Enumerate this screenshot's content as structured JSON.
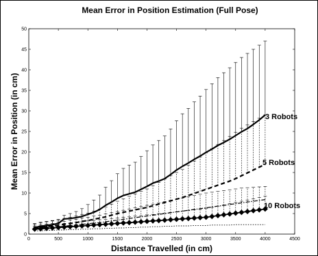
{
  "chart_data": {
    "type": "line",
    "title": "Mean Error in Position  Estimation (Full Pose)",
    "xlabel": "Distance Travelled (in cm)",
    "ylabel": "Mean Error in Position (in cm)",
    "xlim": [
      0,
      4500
    ],
    "ylim": [
      0,
      50
    ],
    "xticks": [
      0,
      500,
      1000,
      1500,
      2000,
      2500,
      3000,
      3500,
      4000,
      4500
    ],
    "yticks": [
      0,
      5,
      10,
      15,
      20,
      25,
      30,
      35,
      40,
      45,
      50
    ],
    "grid": false,
    "x": [
      100,
      200,
      300,
      400,
      500,
      600,
      700,
      800,
      900,
      1000,
      1100,
      1200,
      1300,
      1400,
      1500,
      1600,
      1700,
      1800,
      1900,
      2000,
      2100,
      2200,
      2300,
      2400,
      2500,
      2600,
      2700,
      2800,
      2900,
      3000,
      3100,
      3200,
      3300,
      3400,
      3500,
      3600,
      3700,
      3800,
      3900,
      4000
    ],
    "series": [
      {
        "name": "3 Robots",
        "style": "solid",
        "values": [
          1.6,
          1.9,
          2.1,
          2.3,
          2.6,
          3.7,
          3.8,
          4.0,
          4.3,
          4.8,
          5.3,
          6.0,
          7.0,
          7.8,
          8.7,
          9.4,
          9.8,
          10.2,
          10.9,
          11.6,
          12.4,
          12.9,
          13.5,
          14.5,
          15.6,
          16.5,
          17.3,
          18.2,
          19.0,
          19.9,
          20.7,
          21.6,
          22.3,
          23.1,
          24.0,
          24.9,
          25.7,
          26.7,
          27.8,
          29.0
        ],
        "upper": [
          2.6,
          2.9,
          3.1,
          3.3,
          3.6,
          4.6,
          5.0,
          5.5,
          6.2,
          7.2,
          8.3,
          9.5,
          11.4,
          13.0,
          14.7,
          16.0,
          16.8,
          17.5,
          18.9,
          20.3,
          21.7,
          22.8,
          23.9,
          25.6,
          27.6,
          29.3,
          30.6,
          32.2,
          33.6,
          35.2,
          36.6,
          38.1,
          39.3,
          40.5,
          41.8,
          43.0,
          44.0,
          45.0,
          46.0,
          47.0
        ]
      },
      {
        "name": "5 Robots",
        "style": "dashed",
        "values": [
          1.4,
          1.6,
          1.8,
          2.0,
          2.1,
          2.4,
          2.6,
          2.8,
          3.1,
          3.3,
          3.6,
          3.9,
          4.2,
          4.6,
          5.0,
          5.3,
          5.6,
          5.9,
          6.2,
          6.5,
          6.9,
          7.3,
          7.7,
          8.1,
          8.5,
          8.9,
          9.4,
          9.9,
          10.4,
          10.9,
          11.4,
          11.9,
          12.4,
          12.9,
          13.5,
          14.2,
          14.9,
          15.6,
          16.3,
          17.0
        ],
        "upper": [
          2.4,
          2.7,
          3.0,
          3.2,
          3.4,
          3.8,
          4.1,
          4.4,
          4.8,
          5.1,
          5.6,
          6.1,
          6.6,
          7.3,
          8.0,
          8.6,
          9.2,
          9.8,
          10.4,
          11.0,
          11.8,
          12.6,
          13.4,
          14.2,
          15.0,
          15.8,
          16.8,
          17.8,
          18.8,
          19.8,
          20.8,
          21.8,
          22.8,
          23.8,
          24.8,
          25.8,
          26.6,
          27.4,
          28.2,
          29.0
        ]
      },
      {
        "name": "",
        "style": "dash-dot",
        "values": [
          1.3,
          1.4,
          1.5,
          1.6,
          1.8,
          1.9,
          2.1,
          2.2,
          2.4,
          2.5,
          2.7,
          2.8,
          3.0,
          3.2,
          3.4,
          3.6,
          3.8,
          4.0,
          4.2,
          4.4,
          4.6,
          4.8,
          5.0,
          5.2,
          5.4,
          5.6,
          5.8,
          6.0,
          6.2,
          6.4,
          6.6,
          6.8,
          7.0,
          7.2,
          7.4,
          7.6,
          7.8,
          8.0,
          8.2,
          8.4
        ],
        "upper": [
          2.0,
          2.2,
          2.4,
          2.6,
          2.9,
          3.1,
          3.4,
          3.6,
          3.9,
          4.1,
          4.4,
          4.6,
          4.9,
          5.2,
          5.5,
          5.8,
          6.1,
          6.4,
          6.7,
          7.0,
          7.3,
          7.6,
          7.9,
          8.2,
          8.5,
          8.8,
          9.1,
          9.4,
          9.7,
          10.0,
          10.2,
          10.4,
          10.6,
          10.8,
          11.0,
          11.2,
          11.3,
          11.4,
          11.5,
          11.6
        ]
      },
      {
        "name": "10 Robots",
        "style": "solid-diamond",
        "values": [
          1.2,
          1.3,
          1.4,
          1.5,
          1.6,
          1.7,
          1.8,
          1.9,
          2.0,
          2.1,
          2.2,
          2.3,
          2.4,
          2.5,
          2.6,
          2.7,
          2.8,
          2.9,
          3.0,
          3.1,
          3.2,
          3.3,
          3.4,
          3.5,
          3.6,
          3.7,
          3.8,
          3.9,
          4.0,
          4.1,
          4.3,
          4.5,
          4.7,
          4.9,
          5.1,
          5.3,
          5.5,
          5.7,
          5.9,
          6.1
        ],
        "upper": [
          1.8,
          2.0,
          2.1,
          2.3,
          2.4,
          2.6,
          2.7,
          2.9,
          3.0,
          3.2,
          3.3,
          3.5,
          3.6,
          3.8,
          3.9,
          4.1,
          4.2,
          4.4,
          4.5,
          4.7,
          4.8,
          5.0,
          5.1,
          5.3,
          5.4,
          5.6,
          5.7,
          5.9,
          6.0,
          6.2,
          6.5,
          6.8,
          7.1,
          7.4,
          7.7,
          8.0,
          8.3,
          8.6,
          8.9,
          9.2
        ]
      }
    ],
    "lower_dotted_curve": [
      0.8,
      0.8,
      0.9,
      0.9,
      1.0,
      1.0,
      1.1,
      1.1,
      1.2,
      1.2,
      1.3,
      1.3,
      1.4,
      1.4,
      1.5,
      1.5,
      1.6,
      1.6,
      1.7,
      1.7,
      1.8,
      1.8,
      1.9,
      1.9,
      2.0,
      2.0,
      2.0,
      2.1,
      2.1,
      2.1,
      2.2,
      2.2,
      2.2,
      2.2,
      2.3,
      2.3,
      2.3,
      2.3,
      2.3,
      2.3
    ]
  }
}
